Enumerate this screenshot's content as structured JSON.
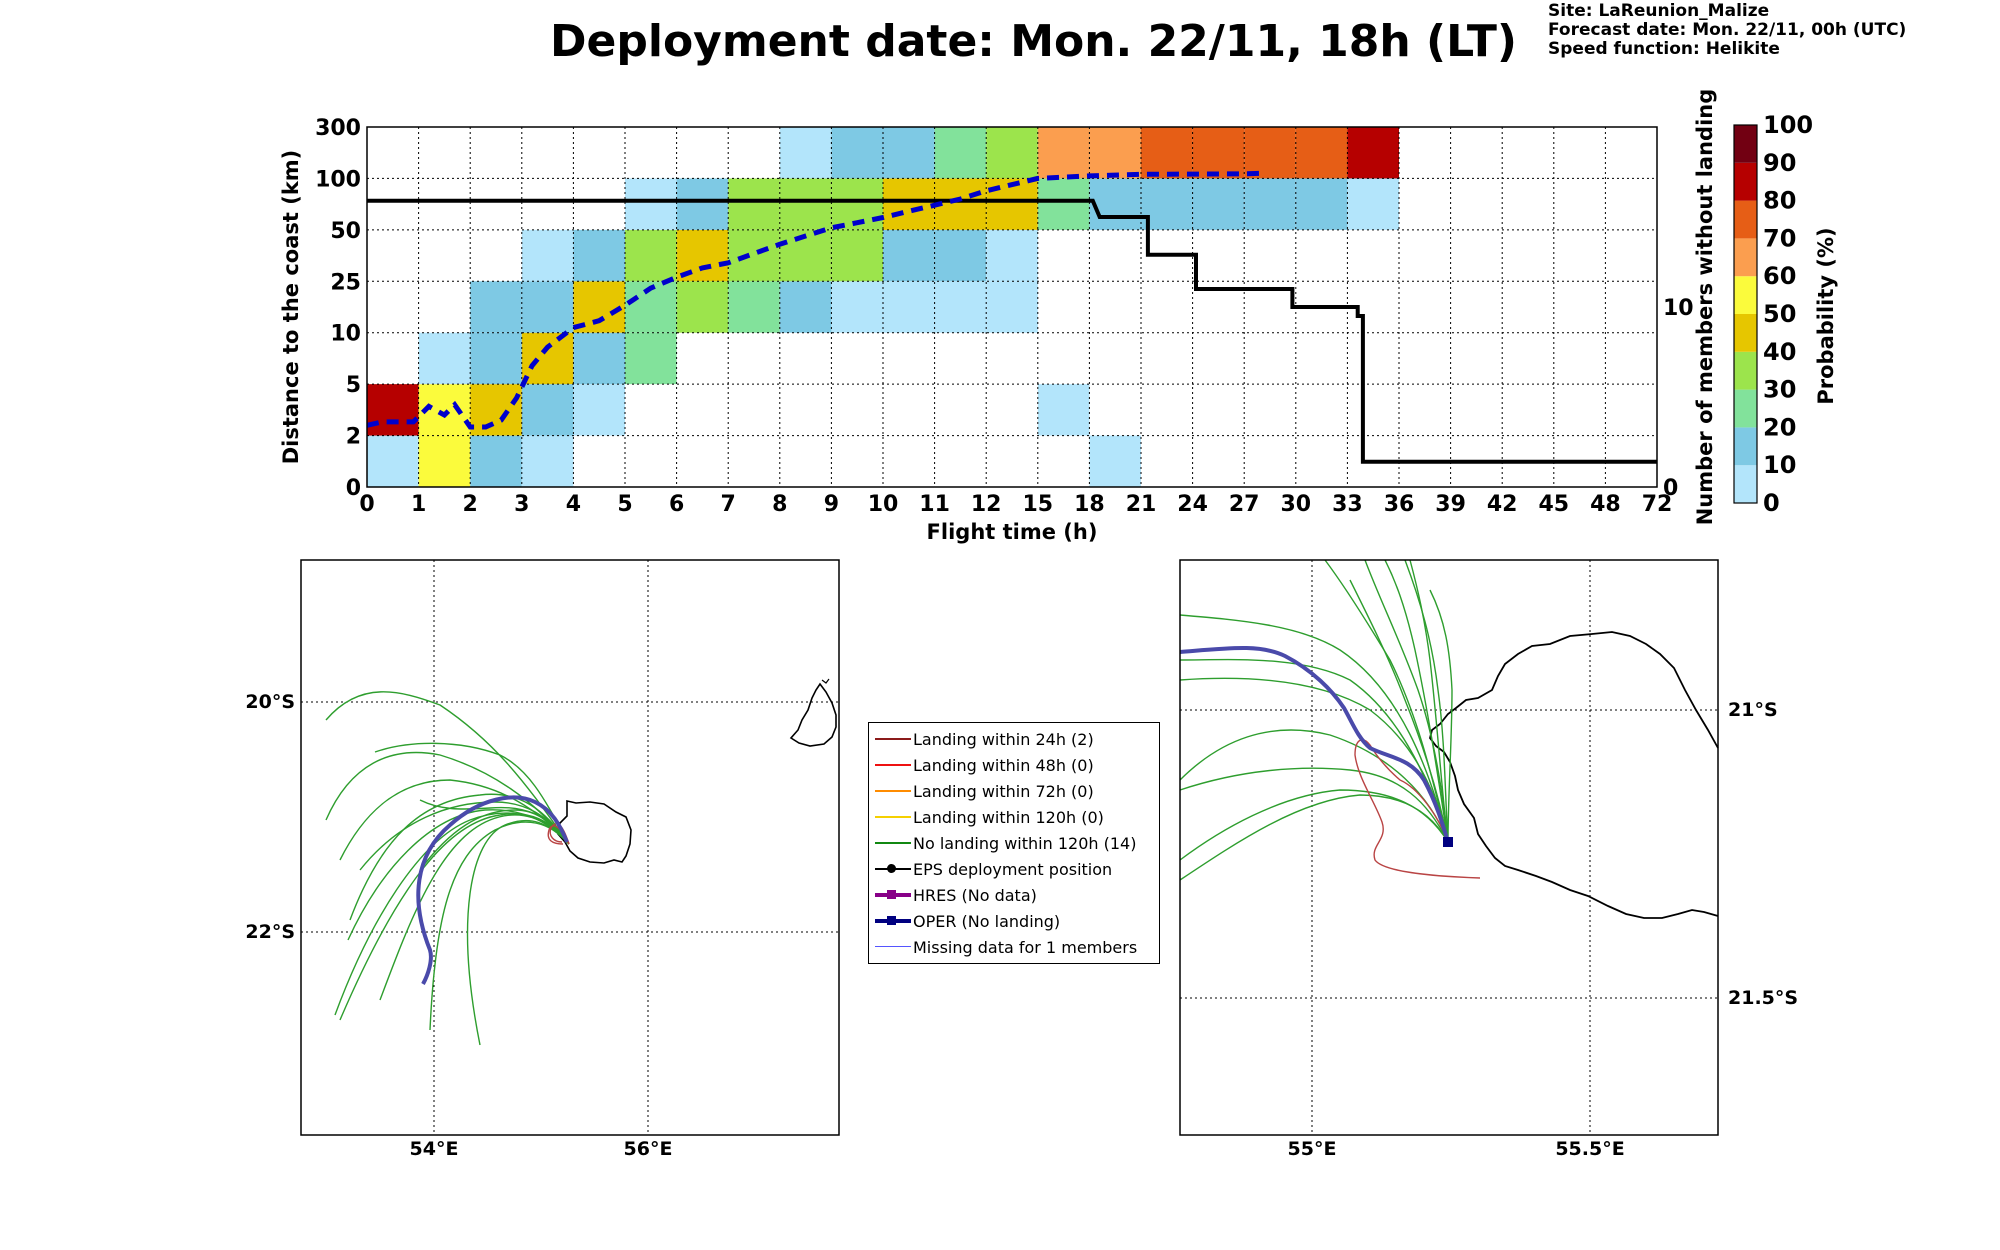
{
  "header": {
    "title": "Deployment date: Mon. 22/11, 18h (LT)",
    "site": "Site: LaReunion_Malize",
    "forecast": "Forecast date: Mon. 22/11, 00h (UTC)",
    "speed": "Speed function: Helikite"
  },
  "colors": {
    "bins": [
      "#b3e5fb",
      "#7ec9e4",
      "#82e29b",
      "#9ce44c",
      "#e6c600",
      "#fbfb3c",
      "#fb9e4f",
      "#e65e16",
      "#b60000",
      "#720012"
    ],
    "black_line": "#000000",
    "blue_dashed": "#0000cc",
    "track_green": "#2e9e2e",
    "track_red": "#b94444",
    "oper": "#333399",
    "coast": "#000000"
  },
  "chart_data": [
    {
      "type": "heatmap",
      "title": "Deployment date: Mon. 22/11, 18h (LT)",
      "xlabel": "Flight time (h)",
      "ylabel": "Distance to the coast (km)",
      "y2label": "Number of members without landing",
      "colorbar_label": "Probability (%)",
      "x_tick_labels": [
        "0",
        "1",
        "2",
        "3",
        "4",
        "5",
        "6",
        "7",
        "8",
        "9",
        "10",
        "11",
        "12",
        "15",
        "18",
        "21",
        "24",
        "27",
        "30",
        "33",
        "36",
        "39",
        "42",
        "45",
        "48",
        "72"
      ],
      "y_tick_labels": [
        "0",
        "2",
        "5",
        "10",
        "25",
        "50",
        "100",
        "300"
      ],
      "y2_tick_labels": [
        "0",
        "10"
      ],
      "y2_range": [
        0,
        20
      ],
      "colorbar_ticks": [
        "0",
        "10",
        "20",
        "30",
        "40",
        "50",
        "60",
        "70",
        "80",
        "90",
        "100"
      ],
      "grid": true,
      "cells_note": "cells: [x-bin index, y-bin index, color-bin index]; color-bin k covers probability 10k to 10(k+1) %",
      "cells": [
        [
          0,
          0,
          0
        ],
        [
          0,
          1,
          8
        ],
        [
          1,
          0,
          5
        ],
        [
          1,
          1,
          5
        ],
        [
          1,
          2,
          0
        ],
        [
          2,
          0,
          1
        ],
        [
          2,
          1,
          4
        ],
        [
          2,
          2,
          1
        ],
        [
          2,
          3,
          1
        ],
        [
          3,
          0,
          0
        ],
        [
          3,
          1,
          1
        ],
        [
          3,
          2,
          4
        ],
        [
          3,
          3,
          1
        ],
        [
          3,
          4,
          0
        ],
        [
          4,
          1,
          0
        ],
        [
          4,
          2,
          1
        ],
        [
          4,
          3,
          4
        ],
        [
          4,
          4,
          1
        ],
        [
          5,
          2,
          2
        ],
        [
          5,
          3,
          2
        ],
        [
          5,
          4,
          3
        ],
        [
          5,
          5,
          0
        ],
        [
          6,
          3,
          3
        ],
        [
          6,
          4,
          4
        ],
        [
          6,
          5,
          1
        ],
        [
          7,
          3,
          2
        ],
        [
          7,
          4,
          3
        ],
        [
          7,
          5,
          3
        ],
        [
          8,
          3,
          1
        ],
        [
          8,
          4,
          3
        ],
        [
          8,
          5,
          3
        ],
        [
          8,
          6,
          0
        ],
        [
          9,
          3,
          0
        ],
        [
          9,
          4,
          3
        ],
        [
          9,
          5,
          3
        ],
        [
          9,
          6,
          1
        ],
        [
          10,
          3,
          0
        ],
        [
          10,
          4,
          1
        ],
        [
          10,
          5,
          4
        ],
        [
          10,
          6,
          1
        ],
        [
          11,
          3,
          0
        ],
        [
          11,
          4,
          1
        ],
        [
          11,
          5,
          4
        ],
        [
          11,
          6,
          2
        ],
        [
          12,
          3,
          0
        ],
        [
          12,
          4,
          0
        ],
        [
          12,
          5,
          4
        ],
        [
          12,
          6,
          3
        ],
        [
          13,
          1,
          0
        ],
        [
          13,
          5,
          2
        ],
        [
          13,
          6,
          6
        ],
        [
          14,
          0,
          0
        ],
        [
          14,
          5,
          1
        ],
        [
          14,
          6,
          6
        ],
        [
          15,
          5,
          1
        ],
        [
          15,
          6,
          7
        ],
        [
          16,
          5,
          1
        ],
        [
          16,
          6,
          7
        ],
        [
          17,
          5,
          1
        ],
        [
          17,
          6,
          7
        ],
        [
          18,
          5,
          1
        ],
        [
          18,
          6,
          7
        ],
        [
          19,
          5,
          0
        ],
        [
          19,
          6,
          8
        ]
      ],
      "series": [
        {
          "name": "Number of members without landing",
          "style": "solid",
          "x": [
            0,
            1.6,
            1.6,
            18.2,
            18.2,
            18.6,
            18.6,
            21.4,
            21.4,
            24.2,
            24.2,
            29.8,
            29.8,
            33.6,
            33.6,
            33.9,
            33.9,
            72
          ],
          "y": [
            15.9,
            15.9,
            15.9,
            15.9,
            15.9,
            15.0,
            15.0,
            15.0,
            12.9,
            12.9,
            11.0,
            11.0,
            10.0,
            10.0,
            9.5,
            9.5,
            1.4,
            1.4
          ]
        },
        {
          "name": "median distance to the coast",
          "style": "dashed",
          "x": [
            0,
            0.3,
            0.9,
            1.2,
            1.5,
            1.7,
            2.0,
            2.3,
            2.6,
            2.9,
            3.2,
            3.5,
            4.0,
            4.5,
            5.0,
            5.5,
            6.0,
            6.5,
            7.0,
            7.5,
            8.0,
            8.5,
            9.0,
            9.5,
            10.0,
            10.5,
            11.0,
            11.5,
            12.0,
            15,
            18,
            21,
            24,
            27,
            28
          ],
          "y": [
            2.6,
            2.8,
            2.8,
            3.7,
            3.2,
            3.8,
            2.5,
            2.5,
            2.9,
            4.2,
            6.8,
            8.6,
            11.5,
            13.5,
            18.0,
            23.0,
            27.0,
            31.5,
            34.0,
            38.5,
            43.0,
            47.0,
            52.0,
            57.0,
            62.0,
            68.0,
            74.0,
            80.0,
            88.0,
            100,
            110,
            116,
            117,
            118,
            120
          ]
        }
      ]
    },
    {
      "type": "map",
      "title": "",
      "x_tick_labels": [
        "54°E",
        "56°E"
      ],
      "y_tick_labels": [
        "20°S",
        "22°S"
      ],
      "lon_range": [
        52.8,
        57.8
      ],
      "lat_range": [
        -23.8,
        -18.8
      ]
    },
    {
      "type": "map",
      "title": "",
      "x_tick_labels": [
        "55°E",
        "55.5°E"
      ],
      "y_tick_labels": [
        "21°S",
        "21.5°S"
      ],
      "lon_range": [
        54.75,
        55.79
      ],
      "lat_range": [
        -21.73,
        -20.74
      ]
    }
  ],
  "legend": {
    "items": [
      {
        "label": "Landing within 24h (2)",
        "color": "#8b1a1a",
        "kind": "line"
      },
      {
        "label": "Landing within 48h (0)",
        "color": "#ee1111",
        "kind": "line"
      },
      {
        "label": "Landing within 72h (0)",
        "color": "#ff8c00",
        "kind": "line"
      },
      {
        "label": "Landing within 120h (0)",
        "color": "#f5d000",
        "kind": "line"
      },
      {
        "label": "No landing within 120h (14)",
        "color": "#118811",
        "kind": "line"
      },
      {
        "label": "EPS deployment position",
        "color": "#000000",
        "kind": "dot"
      },
      {
        "label": "HRES (No data)",
        "color": "#880088",
        "kind": "square"
      },
      {
        "label": "OPER (No landing)",
        "color": "#000080",
        "kind": "square"
      },
      {
        "label": "Missing data for 1 members",
        "color": "#5555ff",
        "kind": "thin"
      }
    ]
  }
}
